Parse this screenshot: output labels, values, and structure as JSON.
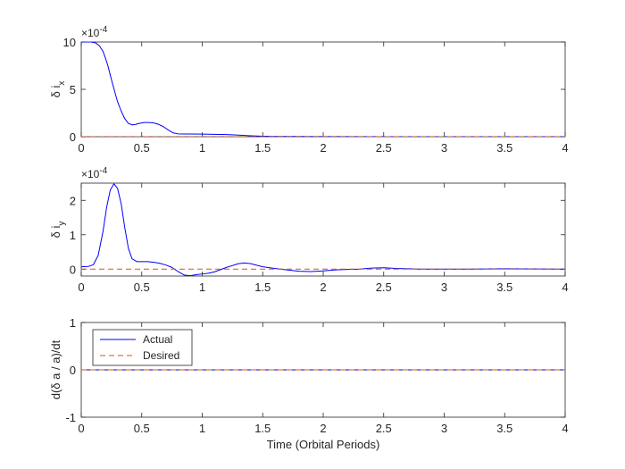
{
  "chart_data": [
    {
      "type": "line",
      "ylabel_main": "δ i",
      "ylabel_sub": "x",
      "exponent_label": "×10",
      "exponent_power": "-4",
      "xlim": [
        0,
        4
      ],
      "ylim": [
        0,
        10
      ],
      "xticks": [
        "0",
        "0.5",
        "1",
        "1.5",
        "2",
        "2.5",
        "3",
        "3.5",
        "4"
      ],
      "yticks": [
        "0",
        "5",
        "10"
      ],
      "grid": false,
      "series": [
        {
          "style": "solid",
          "color": "#0000ff",
          "x": [
            0,
            0.08,
            0.12,
            0.15,
            0.18,
            0.2,
            0.22,
            0.25,
            0.28,
            0.3,
            0.33,
            0.36,
            0.39,
            0.42,
            0.45,
            0.48,
            0.52,
            0.56,
            0.6,
            0.64,
            0.68,
            0.72,
            0.76,
            0.8,
            0.85,
            0.9,
            1.0,
            1.1,
            1.2,
            1.3,
            1.4,
            1.5,
            1.6,
            1.8,
            2.0,
            2.5,
            3.0,
            3.5,
            4.0
          ],
          "y": [
            10,
            10,
            9.9,
            9.6,
            9.0,
            8.3,
            7.5,
            6.0,
            4.6,
            3.7,
            2.7,
            1.9,
            1.4,
            1.25,
            1.3,
            1.4,
            1.5,
            1.5,
            1.45,
            1.3,
            1.05,
            0.7,
            0.4,
            0.3,
            0.28,
            0.28,
            0.27,
            0.25,
            0.22,
            0.17,
            0.1,
            0.05,
            0.02,
            0.02,
            0.01,
            0,
            0,
            0,
            0
          ]
        },
        {
          "style": "dashed",
          "color": "#d95319",
          "x": [
            0,
            4
          ],
          "y": [
            0,
            0
          ]
        }
      ]
    },
    {
      "type": "line",
      "ylabel_main": "δ i",
      "ylabel_sub": "y",
      "exponent_label": "×10",
      "exponent_power": "-4",
      "xlim": [
        0,
        4
      ],
      "ylim": [
        -0.2,
        2.5
      ],
      "xticks": [
        "0",
        "0.5",
        "1",
        "1.5",
        "2",
        "2.5",
        "3",
        "3.5",
        "4"
      ],
      "yticks": [
        "0",
        "1",
        "2"
      ],
      "grid": false,
      "series": [
        {
          "style": "solid",
          "color": "#0000ff",
          "x": [
            0,
            0.06,
            0.1,
            0.14,
            0.18,
            0.21,
            0.24,
            0.27,
            0.3,
            0.33,
            0.36,
            0.39,
            0.42,
            0.46,
            0.5,
            0.55,
            0.6,
            0.65,
            0.7,
            0.75,
            0.8,
            0.85,
            0.9,
            0.95,
            1.0,
            1.05,
            1.1,
            1.2,
            1.3,
            1.35,
            1.4,
            1.5,
            1.6,
            1.7,
            1.8,
            1.9,
            2.0,
            2.1,
            2.2,
            2.3,
            2.4,
            2.5,
            2.6,
            2.8,
            3.0,
            3.2,
            3.5,
            4.0
          ],
          "y": [
            0.07,
            0.08,
            0.13,
            0.4,
            1.1,
            1.8,
            2.3,
            2.48,
            2.35,
            1.9,
            1.2,
            0.6,
            0.3,
            0.22,
            0.22,
            0.22,
            0.2,
            0.17,
            0.12,
            0.05,
            -0.07,
            -0.17,
            -0.19,
            -0.16,
            -0.14,
            -0.12,
            -0.08,
            0.05,
            0.16,
            0.18,
            0.16,
            0.07,
            0.02,
            -0.02,
            -0.06,
            -0.07,
            -0.05,
            -0.02,
            -0.01,
            0.0,
            0.03,
            0.04,
            0.02,
            0.0,
            0.0,
            0.0,
            0.01,
            0.0
          ]
        },
        {
          "style": "dashed",
          "color": "#d95319",
          "x": [
            0,
            4
          ],
          "y": [
            0,
            0
          ]
        }
      ]
    },
    {
      "type": "line",
      "ylabel_main": "d(δ a / a)/dt",
      "xlabel": "Time (Orbital Periods)",
      "xlim": [
        0,
        4
      ],
      "ylim": [
        -1,
        1
      ],
      "xticks": [
        "0",
        "0.5",
        "1",
        "1.5",
        "2",
        "2.5",
        "3",
        "3.5",
        "4"
      ],
      "yticks": [
        "-1",
        "0",
        "1"
      ],
      "grid": false,
      "legend_position": "top-left",
      "series": [
        {
          "name": "Actual",
          "style": "solid",
          "color": "#0000ff",
          "x": [
            0,
            4
          ],
          "y": [
            0,
            0
          ]
        },
        {
          "name": "Desired",
          "style": "dashed",
          "color": "#d95319",
          "x": [
            0,
            4
          ],
          "y": [
            0,
            0
          ]
        }
      ]
    }
  ]
}
